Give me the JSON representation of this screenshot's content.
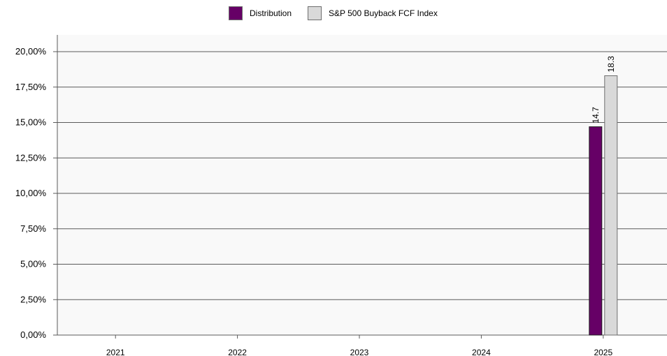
{
  "chart_data": {
    "type": "bar",
    "categories": [
      "2021",
      "2022",
      "2023",
      "2024",
      "2025"
    ],
    "series": [
      {
        "name": "Distribution",
        "color": "#660066",
        "values": [
          null,
          null,
          null,
          null,
          14.7
        ],
        "labels": [
          null,
          null,
          null,
          null,
          "14.7"
        ]
      },
      {
        "name": "S&P 500 Buyback FCF Index",
        "color": "#d9d9d9",
        "values": [
          null,
          null,
          null,
          null,
          18.3
        ],
        "labels": [
          null,
          null,
          null,
          null,
          "18.3"
        ]
      }
    ],
    "ylim": [
      0,
      20
    ],
    "yticks": [
      0,
      2.5,
      5,
      7.5,
      10,
      12.5,
      15,
      17.5,
      20
    ],
    "ytick_labels": [
      "0,00%",
      "2,50%",
      "5,00%",
      "7,50%",
      "10,00%",
      "12,50%",
      "15,00%",
      "17,50%",
      "20,00%"
    ],
    "grid": true,
    "legend": "top-center",
    "title": "",
    "xlabel": "",
    "ylabel": ""
  }
}
